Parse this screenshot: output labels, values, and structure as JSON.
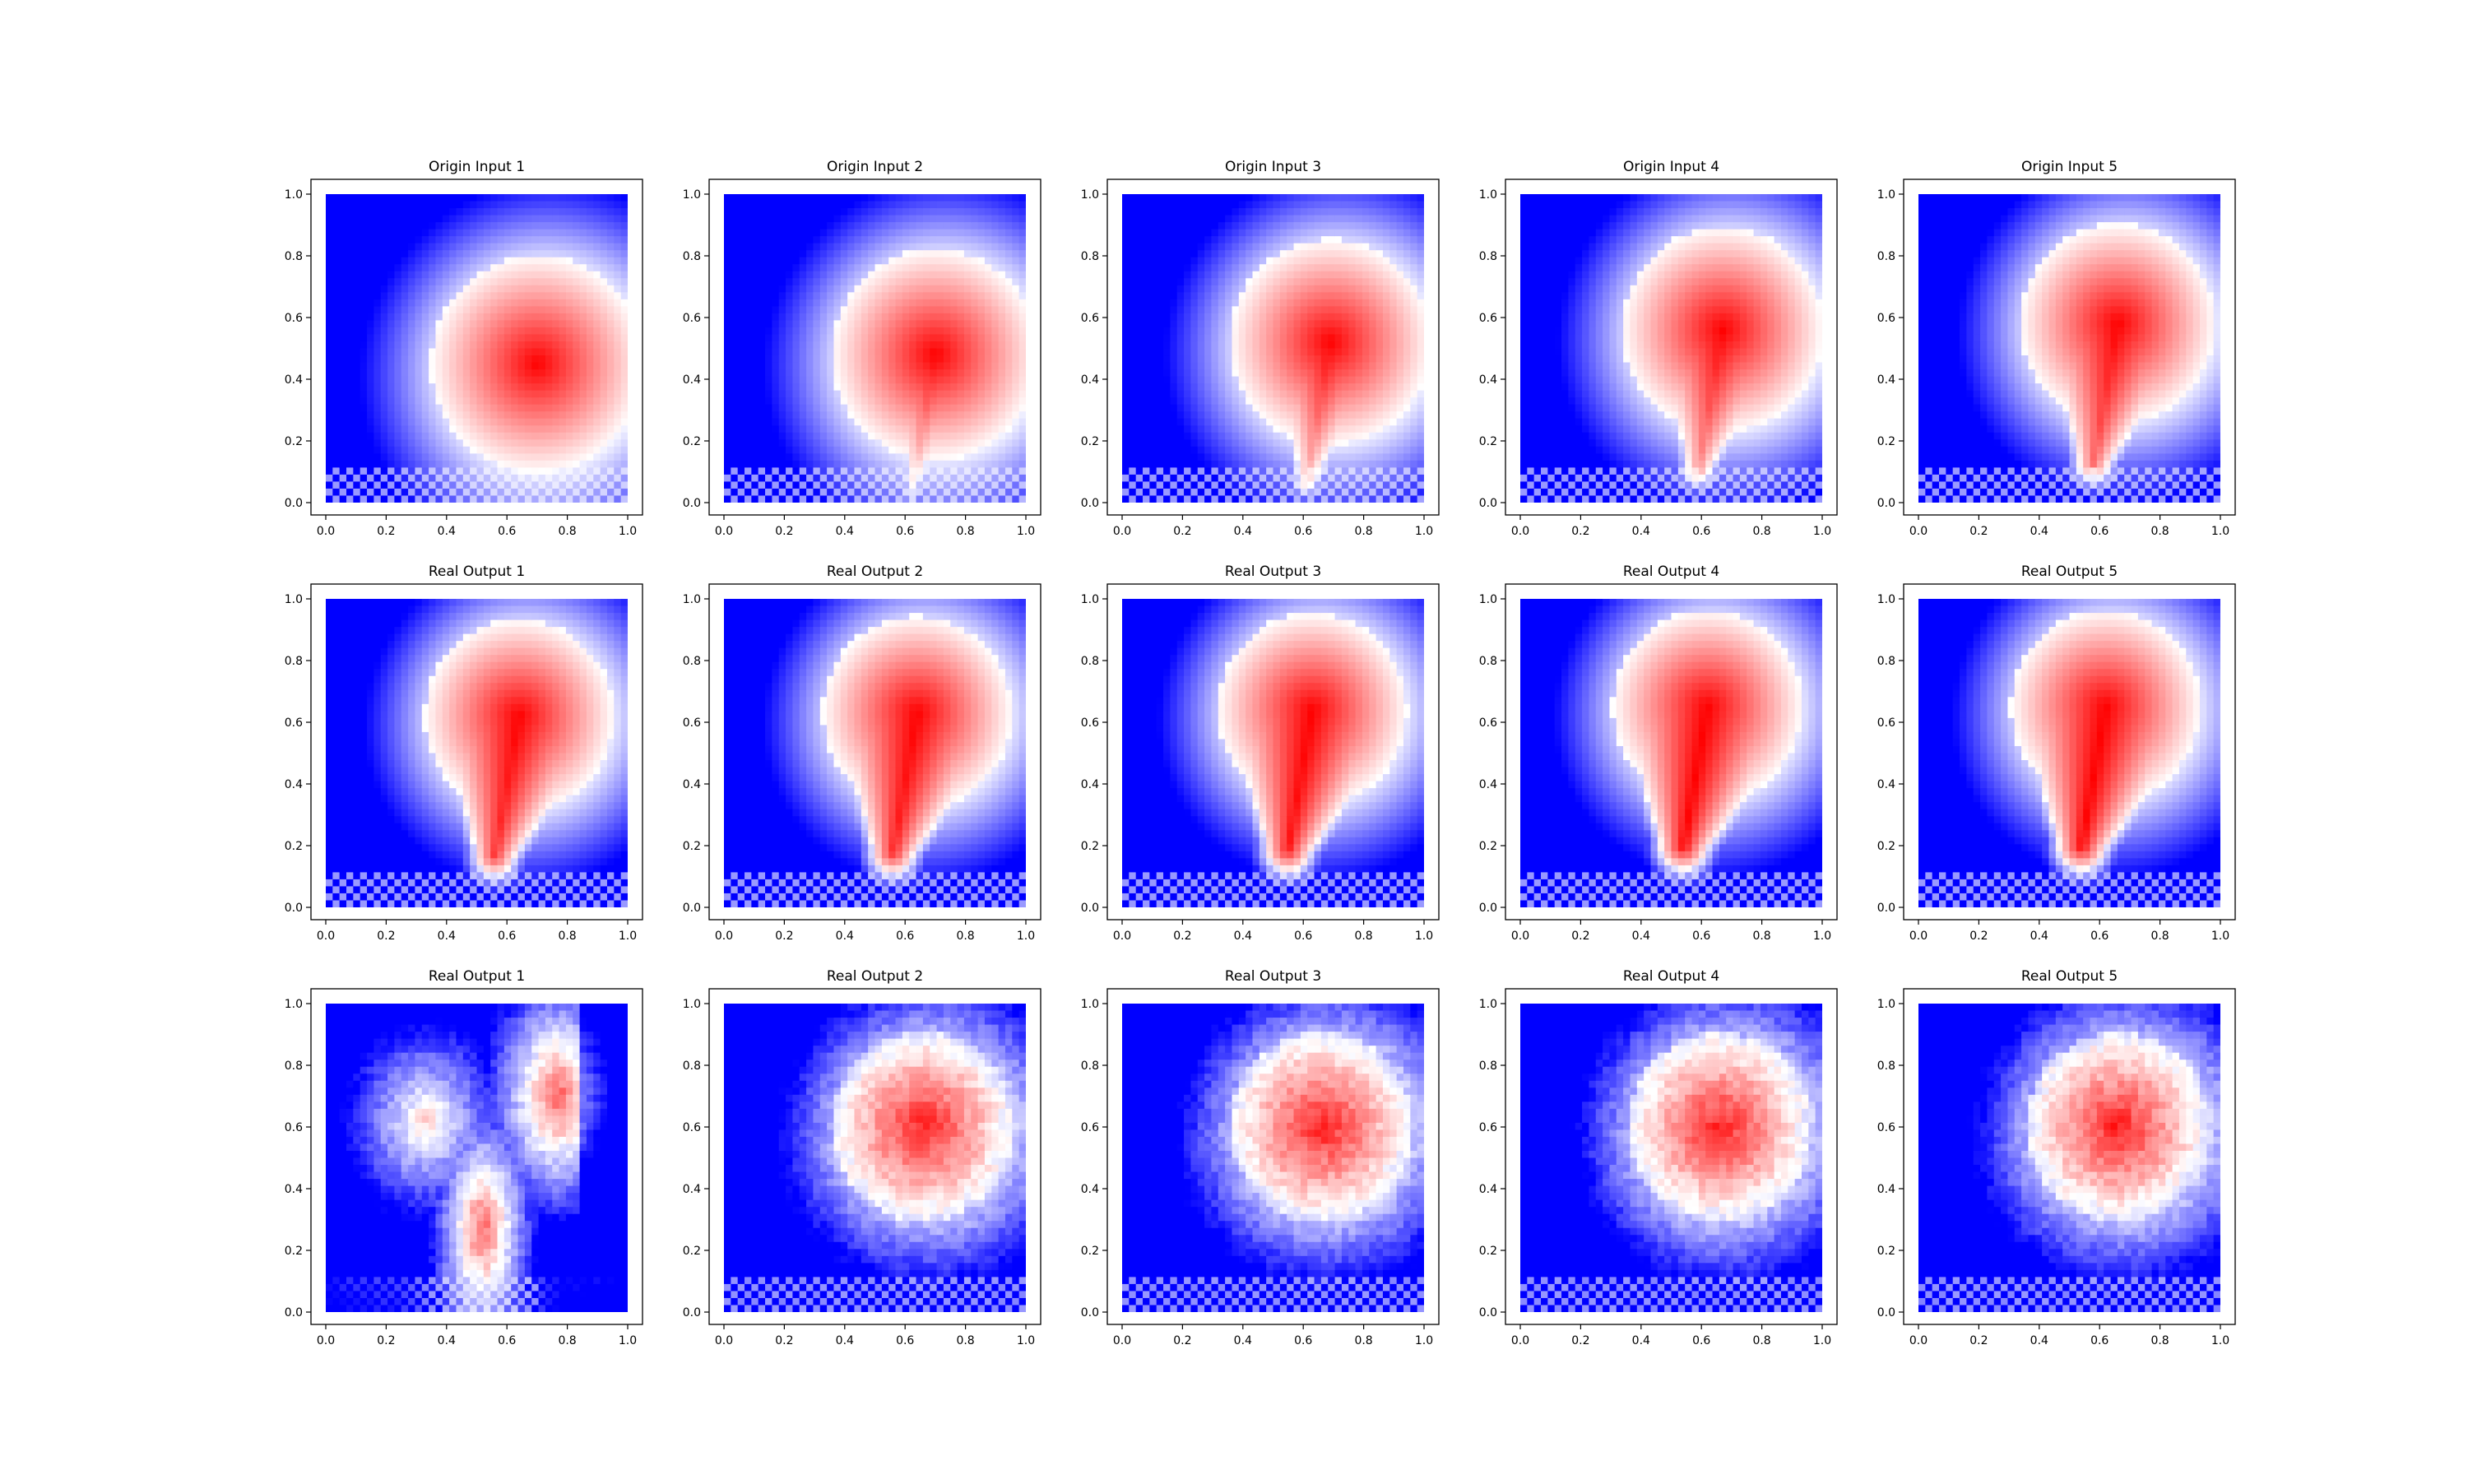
{
  "figure": {
    "colors": {
      "low": "#0000ff",
      "mid": "#ffffff",
      "high": "#ff0000"
    },
    "colormap": "bwr"
  },
  "chart_data": [
    {
      "type": "heatmap",
      "title": "Origin Input 1",
      "xlim": [
        0,
        1
      ],
      "ylim": [
        0,
        1
      ],
      "xticks": [
        "0.0",
        "0.2",
        "0.4",
        "0.6",
        "0.8",
        "1.0"
      ],
      "yticks": [
        "0.0",
        "0.2",
        "0.4",
        "0.6",
        "0.8",
        "1.0"
      ],
      "pattern": "blob",
      "blob": {
        "cx": 0.7,
        "cy": 0.45,
        "r": 0.37,
        "tail": 0.0
      }
    },
    {
      "type": "heatmap",
      "title": "Origin Input 2",
      "xlim": [
        0,
        1
      ],
      "ylim": [
        0,
        1
      ],
      "xticks": [
        "0.0",
        "0.2",
        "0.4",
        "0.6",
        "0.8",
        "1.0"
      ],
      "yticks": [
        "0.0",
        "0.2",
        "0.4",
        "0.6",
        "0.8",
        "1.0"
      ],
      "pattern": "blob",
      "blob": {
        "cx": 0.7,
        "cy": 0.48,
        "r": 0.36,
        "tail": 0.2
      }
    },
    {
      "type": "heatmap",
      "title": "Origin Input 3",
      "xlim": [
        0,
        1
      ],
      "ylim": [
        0,
        1
      ],
      "xticks": [
        "0.0",
        "0.2",
        "0.4",
        "0.6",
        "0.8",
        "1.0"
      ],
      "yticks": [
        "0.0",
        "0.2",
        "0.4",
        "0.6",
        "0.8",
        "1.0"
      ],
      "pattern": "blob",
      "blob": {
        "cx": 0.69,
        "cy": 0.52,
        "r": 0.35,
        "tail": 0.4
      }
    },
    {
      "type": "heatmap",
      "title": "Origin Input 4",
      "xlim": [
        0,
        1
      ],
      "ylim": [
        0,
        1
      ],
      "xticks": [
        "0.0",
        "0.2",
        "0.4",
        "0.6",
        "0.8",
        "1.0"
      ],
      "yticks": [
        "0.0",
        "0.2",
        "0.4",
        "0.6",
        "0.8",
        "1.0"
      ],
      "pattern": "blob",
      "blob": {
        "cx": 0.67,
        "cy": 0.56,
        "r": 0.35,
        "tail": 0.55
      }
    },
    {
      "type": "heatmap",
      "title": "Origin Input 5",
      "xlim": [
        0,
        1
      ],
      "ylim": [
        0,
        1
      ],
      "xticks": [
        "0.0",
        "0.2",
        "0.4",
        "0.6",
        "0.8",
        "1.0"
      ],
      "yticks": [
        "0.0",
        "0.2",
        "0.4",
        "0.6",
        "0.8",
        "1.0"
      ],
      "pattern": "blob",
      "blob": {
        "cx": 0.66,
        "cy": 0.58,
        "r": 0.34,
        "tail": 0.7
      }
    },
    {
      "type": "heatmap",
      "title": "Real Output 1",
      "xlim": [
        0,
        1
      ],
      "ylim": [
        0,
        1
      ],
      "xticks": [
        "0.0",
        "0.2",
        "0.4",
        "0.6",
        "0.8",
        "1.0"
      ],
      "yticks": [
        "0.0",
        "0.2",
        "0.4",
        "0.6",
        "0.8",
        "1.0"
      ],
      "pattern": "blob",
      "blob": {
        "cx": 0.64,
        "cy": 0.62,
        "r": 0.33,
        "tail": 0.85
      }
    },
    {
      "type": "heatmap",
      "title": "Real Output 2",
      "xlim": [
        0,
        1
      ],
      "ylim": [
        0,
        1
      ],
      "xticks": [
        "0.0",
        "0.2",
        "0.4",
        "0.6",
        "0.8",
        "1.0"
      ],
      "yticks": [
        "0.0",
        "0.2",
        "0.4",
        "0.6",
        "0.8",
        "1.0"
      ],
      "pattern": "blob",
      "blob": {
        "cx": 0.64,
        "cy": 0.63,
        "r": 0.33,
        "tail": 0.9
      }
    },
    {
      "type": "heatmap",
      "title": "Real Output 3",
      "xlim": [
        0,
        1
      ],
      "ylim": [
        0,
        1
      ],
      "xticks": [
        "0.0",
        "0.2",
        "0.4",
        "0.6",
        "0.8",
        "1.0"
      ],
      "yticks": [
        "0.0",
        "0.2",
        "0.4",
        "0.6",
        "0.8",
        "1.0"
      ],
      "pattern": "blob",
      "blob": {
        "cx": 0.63,
        "cy": 0.64,
        "r": 0.33,
        "tail": 0.95
      }
    },
    {
      "type": "heatmap",
      "title": "Real Output 4",
      "xlim": [
        0,
        1
      ],
      "ylim": [
        0,
        1
      ],
      "xticks": [
        "0.0",
        "0.2",
        "0.4",
        "0.6",
        "0.8",
        "1.0"
      ],
      "yticks": [
        "0.0",
        "0.2",
        "0.4",
        "0.6",
        "0.8",
        "1.0"
      ],
      "pattern": "blob",
      "blob": {
        "cx": 0.62,
        "cy": 0.65,
        "r": 0.33,
        "tail": 1.0
      }
    },
    {
      "type": "heatmap",
      "title": "Real Output 5",
      "xlim": [
        0,
        1
      ],
      "ylim": [
        0,
        1
      ],
      "xticks": [
        "0.0",
        "0.2",
        "0.4",
        "0.6",
        "0.8",
        "1.0"
      ],
      "yticks": [
        "0.0",
        "0.2",
        "0.4",
        "0.6",
        "0.8",
        "1.0"
      ],
      "pattern": "blob",
      "blob": {
        "cx": 0.62,
        "cy": 0.65,
        "r": 0.33,
        "tail": 1.0
      }
    },
    {
      "type": "heatmap",
      "title": "Real Output 1",
      "xlim": [
        0,
        1
      ],
      "ylim": [
        0,
        1
      ],
      "xticks": [
        "0.0",
        "0.2",
        "0.4",
        "0.6",
        "0.8",
        "1.0"
      ],
      "yticks": [
        "0.0",
        "0.2",
        "0.4",
        "0.6",
        "0.8",
        "1.0"
      ],
      "pattern": "noisy-split",
      "blob": {
        "cx": 0.5,
        "cy": 0.5,
        "r": 0.3,
        "tail": 0.0
      }
    },
    {
      "type": "heatmap",
      "title": "Real Output 2",
      "xlim": [
        0,
        1
      ],
      "ylim": [
        0,
        1
      ],
      "xticks": [
        "0.0",
        "0.2",
        "0.4",
        "0.6",
        "0.8",
        "1.0"
      ],
      "yticks": [
        "0.0",
        "0.2",
        "0.4",
        "0.6",
        "0.8",
        "1.0"
      ],
      "pattern": "noisy-blob",
      "blob": {
        "cx": 0.66,
        "cy": 0.6,
        "r": 0.32,
        "tail": 0.0
      }
    },
    {
      "type": "heatmap",
      "title": "Real Output 3",
      "xlim": [
        0,
        1
      ],
      "ylim": [
        0,
        1
      ],
      "xticks": [
        "0.0",
        "0.2",
        "0.4",
        "0.6",
        "0.8",
        "1.0"
      ],
      "yticks": [
        "0.0",
        "0.2",
        "0.4",
        "0.6",
        "0.8",
        "1.0"
      ],
      "pattern": "noisy-blob",
      "blob": {
        "cx": 0.66,
        "cy": 0.6,
        "r": 0.32,
        "tail": 0.0
      }
    },
    {
      "type": "heatmap",
      "title": "Real Output 4",
      "xlim": [
        0,
        1
      ],
      "ylim": [
        0,
        1
      ],
      "xticks": [
        "0.0",
        "0.2",
        "0.4",
        "0.6",
        "0.8",
        "1.0"
      ],
      "yticks": [
        "0.0",
        "0.2",
        "0.4",
        "0.6",
        "0.8",
        "1.0"
      ],
      "pattern": "noisy-blob",
      "blob": {
        "cx": 0.66,
        "cy": 0.6,
        "r": 0.32,
        "tail": 0.0
      }
    },
    {
      "type": "heatmap",
      "title": "Real Output 5",
      "xlim": [
        0,
        1
      ],
      "ylim": [
        0,
        1
      ],
      "xticks": [
        "0.0",
        "0.2",
        "0.4",
        "0.6",
        "0.8",
        "1.0"
      ],
      "yticks": [
        "0.0",
        "0.2",
        "0.4",
        "0.6",
        "0.8",
        "1.0"
      ],
      "pattern": "noisy-blob",
      "blob": {
        "cx": 0.66,
        "cy": 0.6,
        "r": 0.32,
        "tail": 0.0
      }
    }
  ]
}
